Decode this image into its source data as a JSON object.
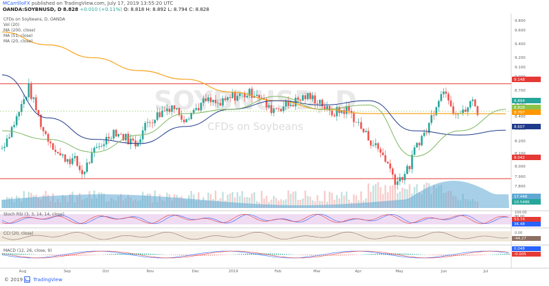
{
  "header": {
    "author": "MCarrilloFX",
    "published": "published on TradingView.com, July 17, 2019 13:55:20 UTC",
    "symbol": "OANDA:SOYBNUSD, D",
    "price": "8.828",
    "change": "+0.010 (+0.11%)",
    "ohlc": "O: 8.818 H: 8.892 L: 8.794 C: 8.828"
  },
  "legend": {
    "title": "CFDs on Soybeans, D, OANDA",
    "vol": "Vol (20)",
    "ma200": "MA (200, close)",
    "ma51": "MA (51, close)",
    "ma20": "MA (20, close)"
  },
  "watermark": {
    "symbol": "SOYBNUSD, D",
    "name": "CFDs on Soybeans"
  },
  "panes": {
    "stoch": "Stoch RSI (3, 3, 14, 14, close)",
    "cci": "CCI (20, close)",
    "macd": "MACD (12, 26, close, 9)"
  },
  "price_axis": [
    "9.800",
    "9.600",
    "9.400",
    "9.200",
    "9.100",
    "9.000",
    "8.700",
    "8.500",
    "8.400",
    "8.300",
    "8.200",
    "8.100",
    "8.000",
    "7.900",
    "7.800",
    "7.700"
  ],
  "price_tags": [
    {
      "value": "9.148",
      "color": "#e53935"
    },
    {
      "value": "8.894",
      "color": "#26a69a"
    },
    {
      "value": "8.828",
      "color": "#8bc34a"
    },
    {
      "value": "8.797",
      "color": "#ff9800"
    },
    {
      "value": "8.607",
      "color": "#1e3a8a"
    },
    {
      "value": "8.042",
      "color": "#e53935"
    },
    {
      "value": "17.448",
      "color": "#5fa8d3"
    },
    {
      "value": "10.548K",
      "color": "#26a69a"
    }
  ],
  "stoch_axis": [
    "100.00",
    "80.00"
  ],
  "stoch_tags": [
    {
      "value": "53.74",
      "color": "#e53935"
    },
    {
      "value": "36.48",
      "color": "#2962ff"
    }
  ],
  "cci_axis": [
    "0.00"
  ],
  "cci_tags": [
    {
      "value": "-44.27",
      "color": "#8d6e63"
    }
  ],
  "macd_tags": [
    {
      "value": "0.048",
      "color": "#2962ff"
    },
    {
      "value": "-0.005",
      "color": "#e53935"
    }
  ],
  "time_axis": [
    "Aug",
    "Sep",
    "Oct",
    "Nov",
    "Dec",
    "2019",
    "Feb",
    "Mar",
    "Apr",
    "May",
    "Jun",
    "Jul"
  ],
  "footer": {
    "copyright": "© 2019",
    "brand": "TradingView"
  },
  "colors": {
    "up": "#26a69a",
    "down": "#ef5350",
    "ma200": "#f7a21b",
    "ma51": "#1e3a8a",
    "ma20": "#7bb661",
    "resistance": "#e53935",
    "volume": "#5fa8d3"
  },
  "chart_data": {
    "type": "candlestick",
    "title": "CFDs on Soybeans, D, OANDA",
    "x": [
      "Aug",
      "Sep",
      "Oct",
      "Nov",
      "Dec",
      "2019",
      "Feb",
      "Mar",
      "Apr",
      "May",
      "Jun",
      "Jul"
    ],
    "ylim": [
      7.7,
      9.9
    ],
    "horizontal_levels": [
      9.148,
      8.042
    ],
    "last_close": 8.828,
    "series": [
      {
        "name": "MA (200, close)",
        "values": [
          9.75,
          9.6,
          9.45,
          9.3,
          9.2,
          9.05,
          8.95,
          8.85,
          8.8,
          8.8,
          8.8,
          8.797
        ]
      },
      {
        "name": "MA (51, close)",
        "values": [
          9.25,
          8.75,
          8.5,
          8.45,
          8.65,
          8.85,
          8.95,
          8.9,
          8.95,
          8.6,
          8.55,
          8.607
        ]
      },
      {
        "name": "MA (20, close)",
        "values": [
          8.6,
          8.5,
          8.35,
          8.55,
          8.8,
          8.85,
          9.0,
          8.85,
          8.9,
          8.3,
          8.6,
          8.85
        ]
      }
    ]
  }
}
